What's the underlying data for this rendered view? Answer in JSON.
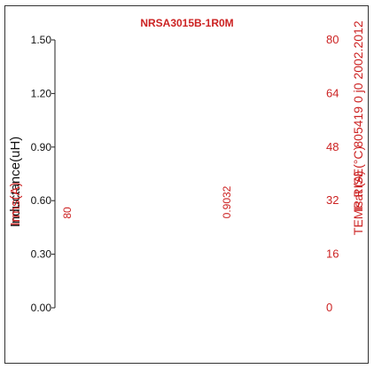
{
  "chart_data": {
    "type": "line",
    "title": "NRSA3015B-1R0M",
    "ylabel_left": "Inductance(uH)",
    "ylabel_left_overlap": "Irms(A)",
    "ylabel_right": "TEMP RISE(°C)",
    "ylabel_right_overlap": "Isat (A)",
    "right_overlay_text": "805419 0 j0 2002.2012",
    "left_axis": {
      "ylim": [
        0,
        1.5
      ],
      "ticks": [
        "0.00",
        "0.30",
        "0.60",
        "0.90",
        "1.20",
        "1.50"
      ]
    },
    "right_axis": {
      "ylim": [
        0,
        80
      ],
      "ticks": [
        "0",
        "16",
        "32",
        "48",
        "64",
        "80"
      ]
    },
    "rotated_values": [
      "80",
      "0.9032"
    ],
    "series": [],
    "grid": false,
    "colors": {
      "title": "#cc2222",
      "right_axis": "#cc2222",
      "left_axis_text": "#111111",
      "overlay_red": "#cc2222"
    }
  }
}
